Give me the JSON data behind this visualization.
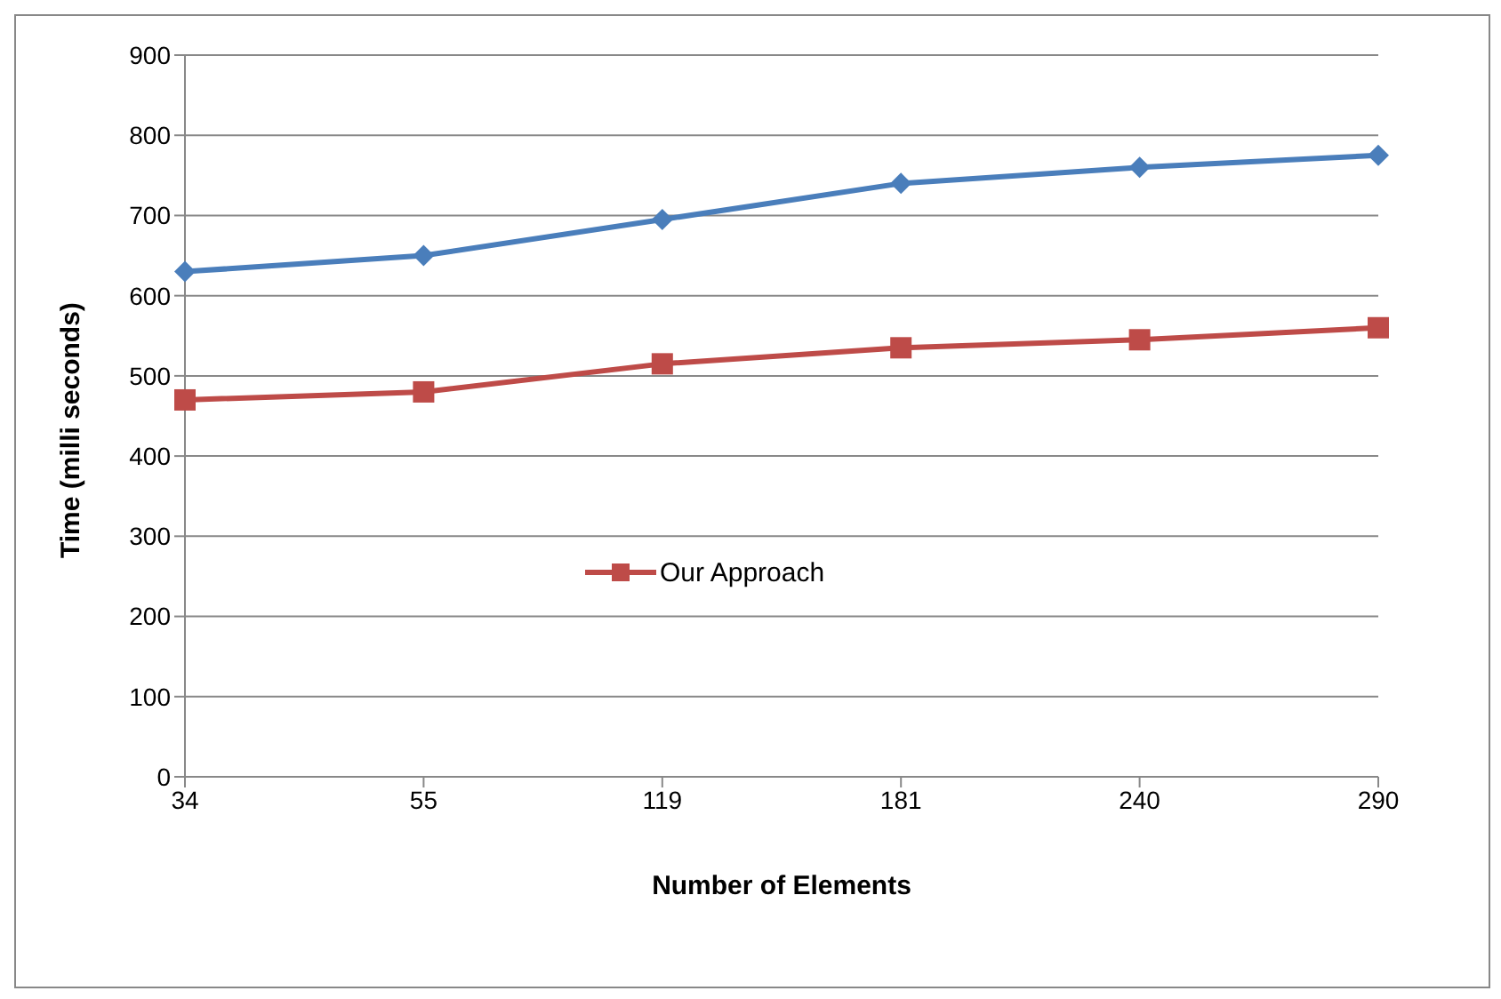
{
  "chart_data": {
    "type": "line",
    "xlabel": "Number of Elements",
    "ylabel": "Time (milli seconds)",
    "categories": [
      "34",
      "55",
      "119",
      "181",
      "240",
      "290"
    ],
    "series": [
      {
        "color": "#4a7ebb",
        "marker": "diamond",
        "values": [
          630,
          650,
          695,
          740,
          760,
          775
        ]
      },
      {
        "name": "Our Approach",
        "color": "#be4b48",
        "marker": "square",
        "values": [
          470,
          480,
          515,
          535,
          545,
          560
        ]
      }
    ],
    "ylim": [
      0,
      900
    ],
    "yticks": [
      0,
      100,
      200,
      300,
      400,
      500,
      600,
      700,
      800,
      900
    ],
    "grid": "y",
    "legend": "center"
  }
}
